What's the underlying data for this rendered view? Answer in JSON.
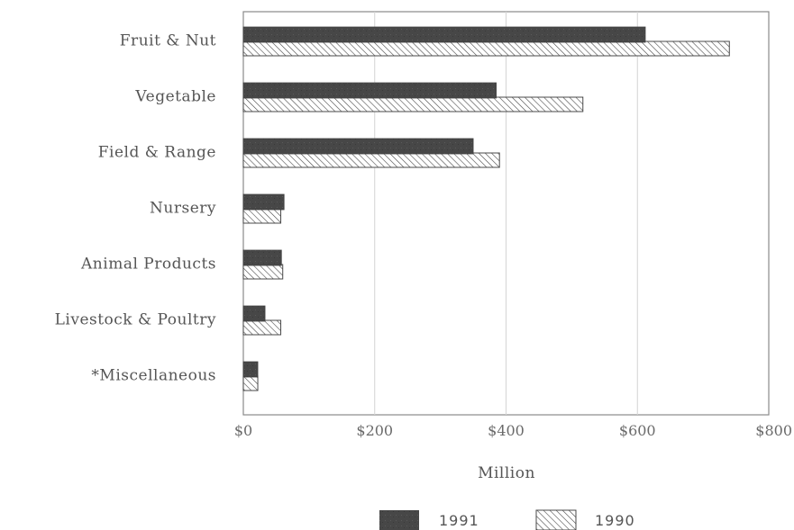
{
  "chart_data": {
    "type": "bar",
    "orientation": "horizontal",
    "categories": [
      "Fruit & Nut",
      "Vegetable",
      "Field & Range",
      "Nursery",
      "Animal Products",
      "Livestock & Poultry",
      "*Miscellaneous"
    ],
    "series": [
      {
        "name": "1991",
        "values": [
          612,
          385,
          350,
          62,
          58,
          33,
          22
        ],
        "color": "#4a4a4a",
        "pattern": "solid"
      },
      {
        "name": "1990",
        "values": [
          740,
          517,
          390,
          57,
          60,
          57,
          22
        ],
        "color": "#ffffff",
        "pattern": "diagonal-hatch"
      }
    ],
    "xlabel": "Million",
    "ylabel": "",
    "xlim": [
      0,
      800
    ],
    "xticks": [
      0,
      200,
      400,
      600,
      800
    ],
    "xtick_labels": [
      "$0",
      "$200",
      "$400",
      "$600",
      "$800"
    ],
    "grid": "vertical",
    "legend": "bottom-center"
  }
}
